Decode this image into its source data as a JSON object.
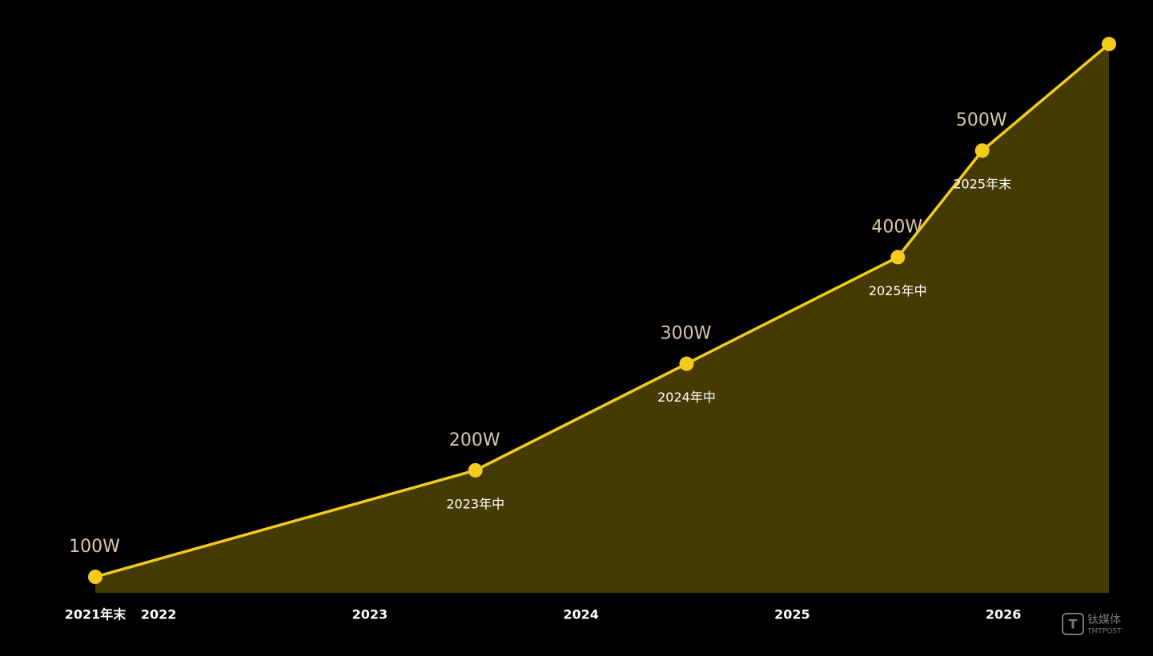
{
  "chart_data": {
    "type": "area",
    "x": [
      2021.7,
      2023.5,
      2024.5,
      2025.5,
      2025.9,
      2026.5
    ],
    "values": [
      100,
      200,
      300,
      400,
      500,
      600
    ],
    "value_labels": [
      "100W",
      "200W",
      "300W",
      "400W",
      "500W",
      null
    ],
    "point_labels": [
      null,
      "2023年中",
      "2024年中",
      "2025年中",
      "2025年末",
      null
    ],
    "xlim": [
      2021.7,
      2026.5
    ],
    "ylim": [
      85,
      620
    ],
    "xticks": [
      {
        "value": 2021.7,
        "label": "2021年末"
      },
      2022,
      2023,
      2024,
      2025,
      2026
    ],
    "color": "#f2cb1d",
    "fill": "#453a02",
    "grid": false
  },
  "watermark": {
    "name": "钛媒体",
    "sub": "TMTPOST"
  }
}
